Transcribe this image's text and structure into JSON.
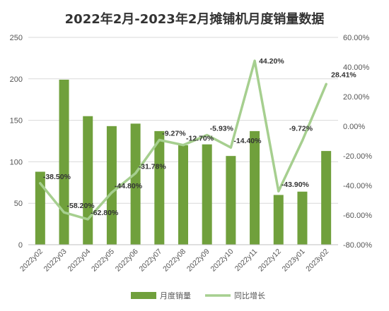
{
  "chart_data": {
    "type": "bar",
    "title": "2022年2月-2023年2月摊铺机月度销量数据",
    "categories": [
      "2022y02",
      "2022y03",
      "2022y04",
      "2022y05",
      "2022y06",
      "2022y07",
      "2022y08",
      "2022y09",
      "2022y10",
      "2022y11",
      "2022y12",
      "2023y01",
      "2023y02"
    ],
    "series": [
      {
        "name": "月度销量",
        "type": "bar",
        "axis": "left",
        "values": [
          88,
          199,
          155,
          143,
          146,
          137,
          120,
          121,
          107,
          137,
          60,
          64,
          113
        ]
      },
      {
        "name": "同比增长",
        "type": "line",
        "axis": "right",
        "values": [
          -38.5,
          -58.2,
          -62.8,
          -44.8,
          -31.78,
          -9.27,
          -12.7,
          -5.93,
          -14.4,
          44.2,
          -43.9,
          -9.72,
          28.41
        ],
        "labels": [
          "-38.50%",
          "-58.20%",
          "-62.80%",
          "-44.80%",
          "-31.78%",
          "-9.27%",
          "-12.70%",
          "-5.93%",
          "-14.40%",
          "44.20%",
          "-43.90%",
          "-9.72%",
          "28.41%"
        ]
      }
    ],
    "left_axis": {
      "min": 0,
      "max": 250,
      "step": 50,
      "ticks": [
        "0",
        "50",
        "100",
        "150",
        "200",
        "250"
      ]
    },
    "right_axis": {
      "min": -80,
      "max": 60,
      "step": 20,
      "ticks": [
        "-80.00%",
        "-60.00%",
        "-40.00%",
        "-20.00%",
        "0.00%",
        "20.00%",
        "40.00%",
        "60.00%"
      ]
    },
    "xlabel": "",
    "ylabel": "",
    "grid": true,
    "legend": "bottom",
    "colors": {
      "bar": "#70a03c",
      "line": "#a6cf8f",
      "grid": "#d9d9d9",
      "axis": "#bfbfbf"
    }
  }
}
